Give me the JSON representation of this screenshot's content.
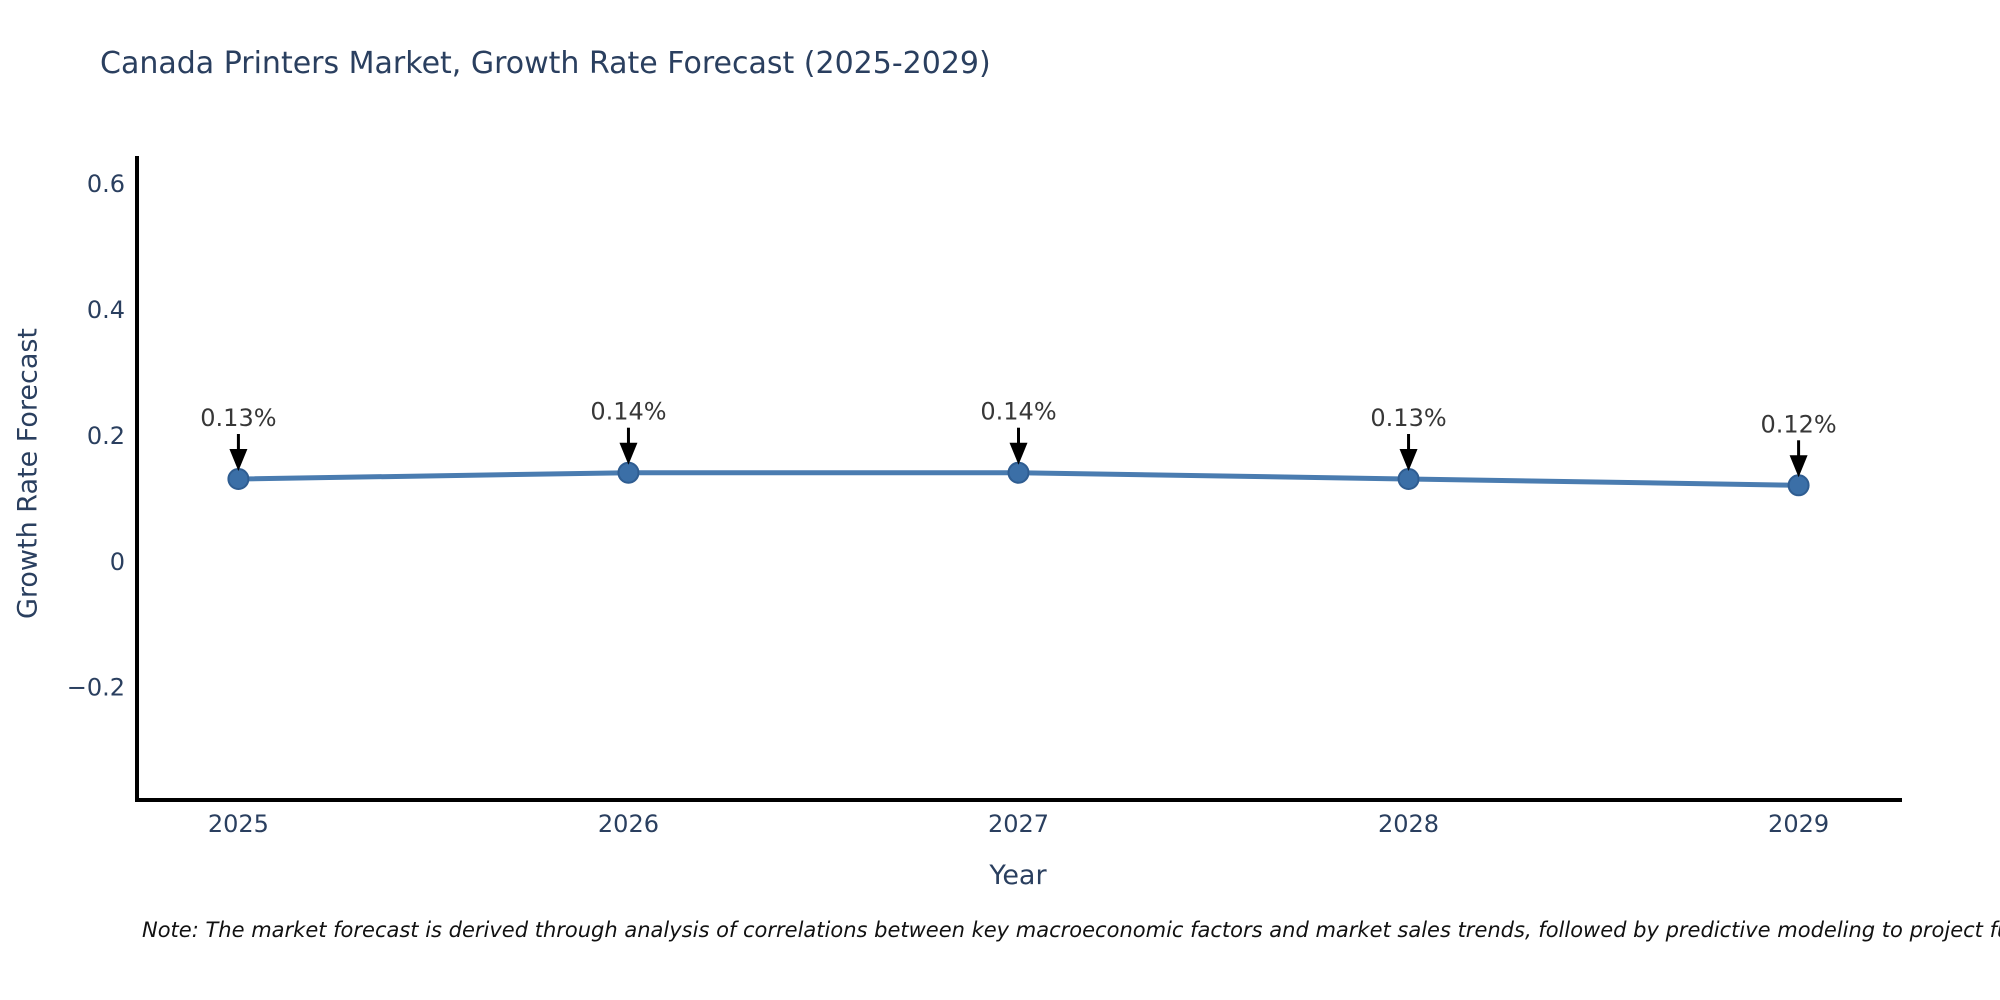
{
  "note": "Note: The market forecast is derived through analysis of correlations between key macroeconomic factors and market sales trends, followed by predictive modeling to project future sales.",
  "chart_data": {
    "type": "line",
    "title": "Canada Printers Market, Growth Rate Forecast (2025-2029)",
    "xlabel": "Year",
    "ylabel": "Growth Rate Forecast",
    "x": [
      2025,
      2026,
      2027,
      2028,
      2029
    ],
    "values": [
      0.13,
      0.14,
      0.14,
      0.13,
      0.12
    ],
    "point_labels": [
      "0.13%",
      "0.14%",
      "0.14%",
      "0.13%",
      "0.12%"
    ],
    "xtick_labels": [
      "2025",
      "2026",
      "2027",
      "2028",
      "2029"
    ],
    "yticks": [
      -0.2,
      0,
      0.2,
      0.4,
      0.6
    ],
    "ytick_labels": [
      "−0.2",
      "0",
      "0.2",
      "0.4",
      "0.6"
    ],
    "xlim": [
      2024.74,
      2029.26
    ],
    "ylim": [
      -0.38,
      0.64
    ],
    "grid": false,
    "legend": null,
    "colors": {
      "line": "#4a7cb0",
      "marker_fill": "#3b6fa7",
      "marker_edge": "#2f5d91",
      "axis": "#000000",
      "axis_text": "#2a3f5f",
      "annotation_text": "#373737",
      "arrow": "#000000"
    }
  }
}
